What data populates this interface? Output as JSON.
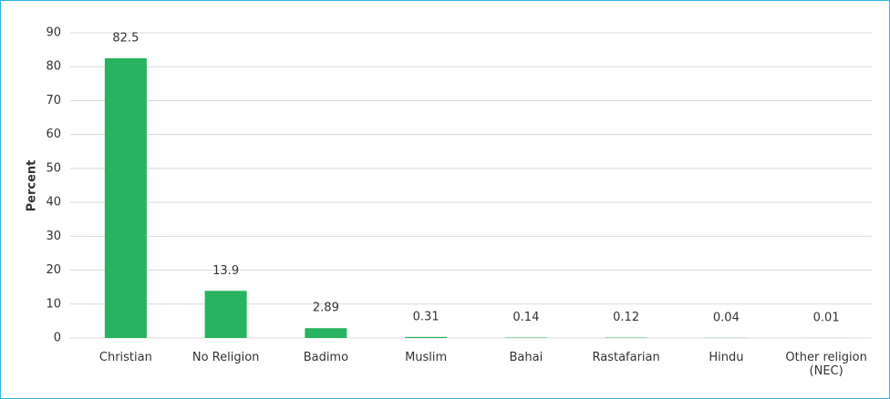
{
  "chart_data": {
    "type": "bar",
    "ylabel": "Percent",
    "categories": [
      "Christian",
      "No Religion",
      "Badimo",
      "Muslim",
      "Bahai",
      "Rastafarian",
      "Hindu",
      "Other religion (NEC)"
    ],
    "values": [
      82.5,
      13.9,
      2.89,
      0.31,
      0.14,
      0.12,
      0.04,
      0.01
    ],
    "color": "#27b35f",
    "ylim": [
      0,
      90
    ],
    "yticks": [
      0,
      10,
      20,
      30,
      40,
      50,
      60,
      70,
      80,
      90
    ],
    "grid": true
  }
}
